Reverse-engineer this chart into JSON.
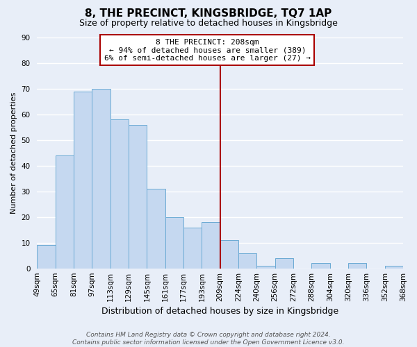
{
  "title": "8, THE PRECINCT, KINGSBRIDGE, TQ7 1AP",
  "subtitle": "Size of property relative to detached houses in Kingsbridge",
  "xlabel": "Distribution of detached houses by size in Kingsbridge",
  "ylabel": "Number of detached properties",
  "bar_values": [
    9,
    44,
    69,
    70,
    58,
    56,
    31,
    20,
    16,
    18,
    11,
    6,
    1,
    4,
    0,
    2,
    0,
    2,
    0,
    1
  ],
  "bar_labels": [
    "49sqm",
    "65sqm",
    "81sqm",
    "97sqm",
    "113sqm",
    "129sqm",
    "145sqm",
    "161sqm",
    "177sqm",
    "193sqm",
    "209sqm",
    "224sqm",
    "240sqm",
    "256sqm",
    "272sqm",
    "288sqm",
    "304sqm",
    "320sqm",
    "336sqm",
    "352sqm",
    "368sqm"
  ],
  "bar_color": "#c5d8f0",
  "bar_edge_color": "#6aaad4",
  "vline_color": "#aa0000",
  "ylim": [
    0,
    90
  ],
  "yticks": [
    0,
    10,
    20,
    30,
    40,
    50,
    60,
    70,
    80,
    90
  ],
  "annotation_title": "8 THE PRECINCT: 208sqm",
  "annotation_line1": "← 94% of detached houses are smaller (389)",
  "annotation_line2": "6% of semi-detached houses are larger (27) →",
  "annotation_box_color": "#ffffff",
  "annotation_box_edge": "#aa0000",
  "footer_line1": "Contains HM Land Registry data © Crown copyright and database right 2024.",
  "footer_line2": "Contains public sector information licensed under the Open Government Licence v3.0.",
  "bg_color": "#e8eef8",
  "grid_color": "#ffffff",
  "title_fontsize": 11,
  "subtitle_fontsize": 9,
  "xlabel_fontsize": 9,
  "ylabel_fontsize": 8,
  "tick_fontsize": 7.5,
  "footer_fontsize": 6.5,
  "vline_bar_index": 10
}
